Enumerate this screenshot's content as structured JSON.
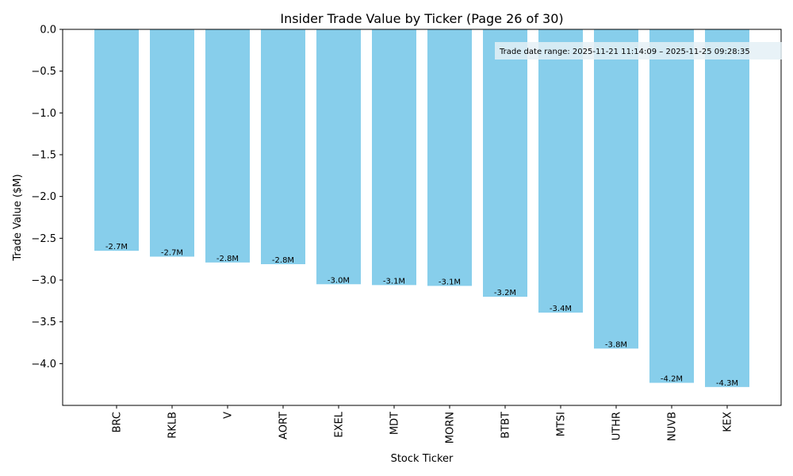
{
  "chart_data": {
    "type": "bar",
    "title": "Insider Trade Value by Ticker (Page 26 of 30)",
    "xlabel": "Stock Ticker",
    "ylabel": "Trade Value ($M)",
    "categories": [
      "BRC",
      "RKLB",
      "V",
      "AORT",
      "EXEL",
      "MDT",
      "MORN",
      "BTBT",
      "MTSI",
      "UTHR",
      "NUVB",
      "KEX"
    ],
    "values": [
      -2.65,
      -2.72,
      -2.79,
      -2.81,
      -3.05,
      -3.06,
      -3.07,
      -3.2,
      -3.39,
      -3.82,
      -4.23,
      -4.28
    ],
    "data_labels": [
      "-2.7M",
      "-2.7M",
      "-2.8M",
      "-2.8M",
      "-3.0M",
      "-3.1M",
      "-3.1M",
      "-3.2M",
      "-3.4M",
      "-3.8M",
      "-4.2M",
      "-4.3M"
    ],
    "ylim": [
      -4.5,
      0.0
    ],
    "yticks": [
      0.0,
      -0.5,
      -1.0,
      -1.5,
      -2.0,
      -2.5,
      -3.0,
      -3.5,
      -4.0
    ],
    "ytick_labels": [
      "0.0",
      "−0.5",
      "−1.0",
      "−1.5",
      "−2.0",
      "−2.5",
      "−3.0",
      "−3.5",
      "−4.0"
    ],
    "annotation": "Trade date range: 2025-11-21 11:14:09 – 2025-11-25 09:28:35",
    "grid": false,
    "bar_color": "#87ceeb",
    "annotation_bg": "#e4f0f6"
  }
}
